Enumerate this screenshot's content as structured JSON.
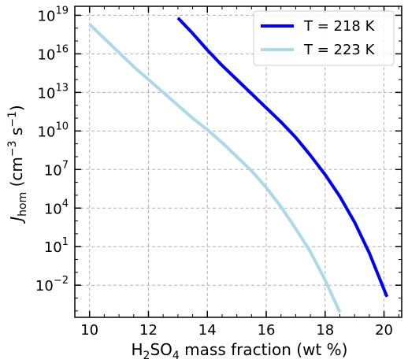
{
  "chart_data": {
    "type": "line",
    "xlabel": {
      "main": "H",
      "sub1": "2",
      "mid": "SO",
      "sub2": "4",
      "tail": " mass fraction (wt %)"
    },
    "ylabel": {
      "main": "J",
      "sub": "hom",
      "unit_open": " (cm",
      "sup1": "−3",
      "unit_mid": " s",
      "sup2": "−1",
      "unit_close": ")"
    },
    "xlim": [
      9.5,
      20.6
    ],
    "ylim_log10": [
      -4.5,
      19.7
    ],
    "y_scale": "log",
    "grid": true,
    "legend_position": "top-right",
    "x_ticks": [
      "10",
      "12",
      "14",
      "16",
      "18",
      "20"
    ],
    "x_tick_values": [
      10,
      12,
      14,
      16,
      18,
      20
    ],
    "y_ticks": [
      {
        "base": "10",
        "exp": "19",
        "log10": 19
      },
      {
        "base": "10",
        "exp": "16",
        "log10": 16
      },
      {
        "base": "10",
        "exp": "13",
        "log10": 13
      },
      {
        "base": "10",
        "exp": "10",
        "log10": 10
      },
      {
        "base": "10",
        "exp": "7",
        "log10": 7
      },
      {
        "base": "10",
        "exp": "4",
        "log10": 4
      },
      {
        "base": "10",
        "exp": "1",
        "log10": 1
      },
      {
        "base": "10",
        "exp": "−2",
        "log10": -2
      }
    ],
    "series": [
      {
        "name": "T = 218 K",
        "color": "#0000ee",
        "x": [
          13.0,
          13.5,
          14.0,
          14.5,
          15.0,
          15.5,
          16.0,
          16.5,
          17.0,
          17.5,
          18.0,
          18.5,
          19.0,
          19.5,
          20.1
        ],
        "log10_y": [
          18.8,
          17.6,
          16.3,
          15.1,
          14.0,
          12.9,
          11.8,
          10.7,
          9.5,
          8.1,
          6.6,
          4.9,
          2.9,
          0.5,
          -2.9
        ]
      },
      {
        "name": "T = 223 K",
        "color": "#add8e6",
        "x": [
          10.0,
          10.5,
          11.0,
          11.5,
          12.0,
          12.5,
          13.0,
          13.5,
          14.0,
          14.5,
          15.0,
          15.5,
          16.0,
          16.5,
          17.0,
          17.5,
          18.0,
          18.5
        ],
        "log10_y": [
          18.3,
          17.2,
          16.1,
          15.0,
          14.0,
          13.0,
          12.0,
          11.0,
          10.1,
          9.1,
          8.0,
          6.9,
          5.6,
          4.1,
          2.4,
          0.6,
          -1.6,
          -4.1
        ]
      }
    ]
  }
}
